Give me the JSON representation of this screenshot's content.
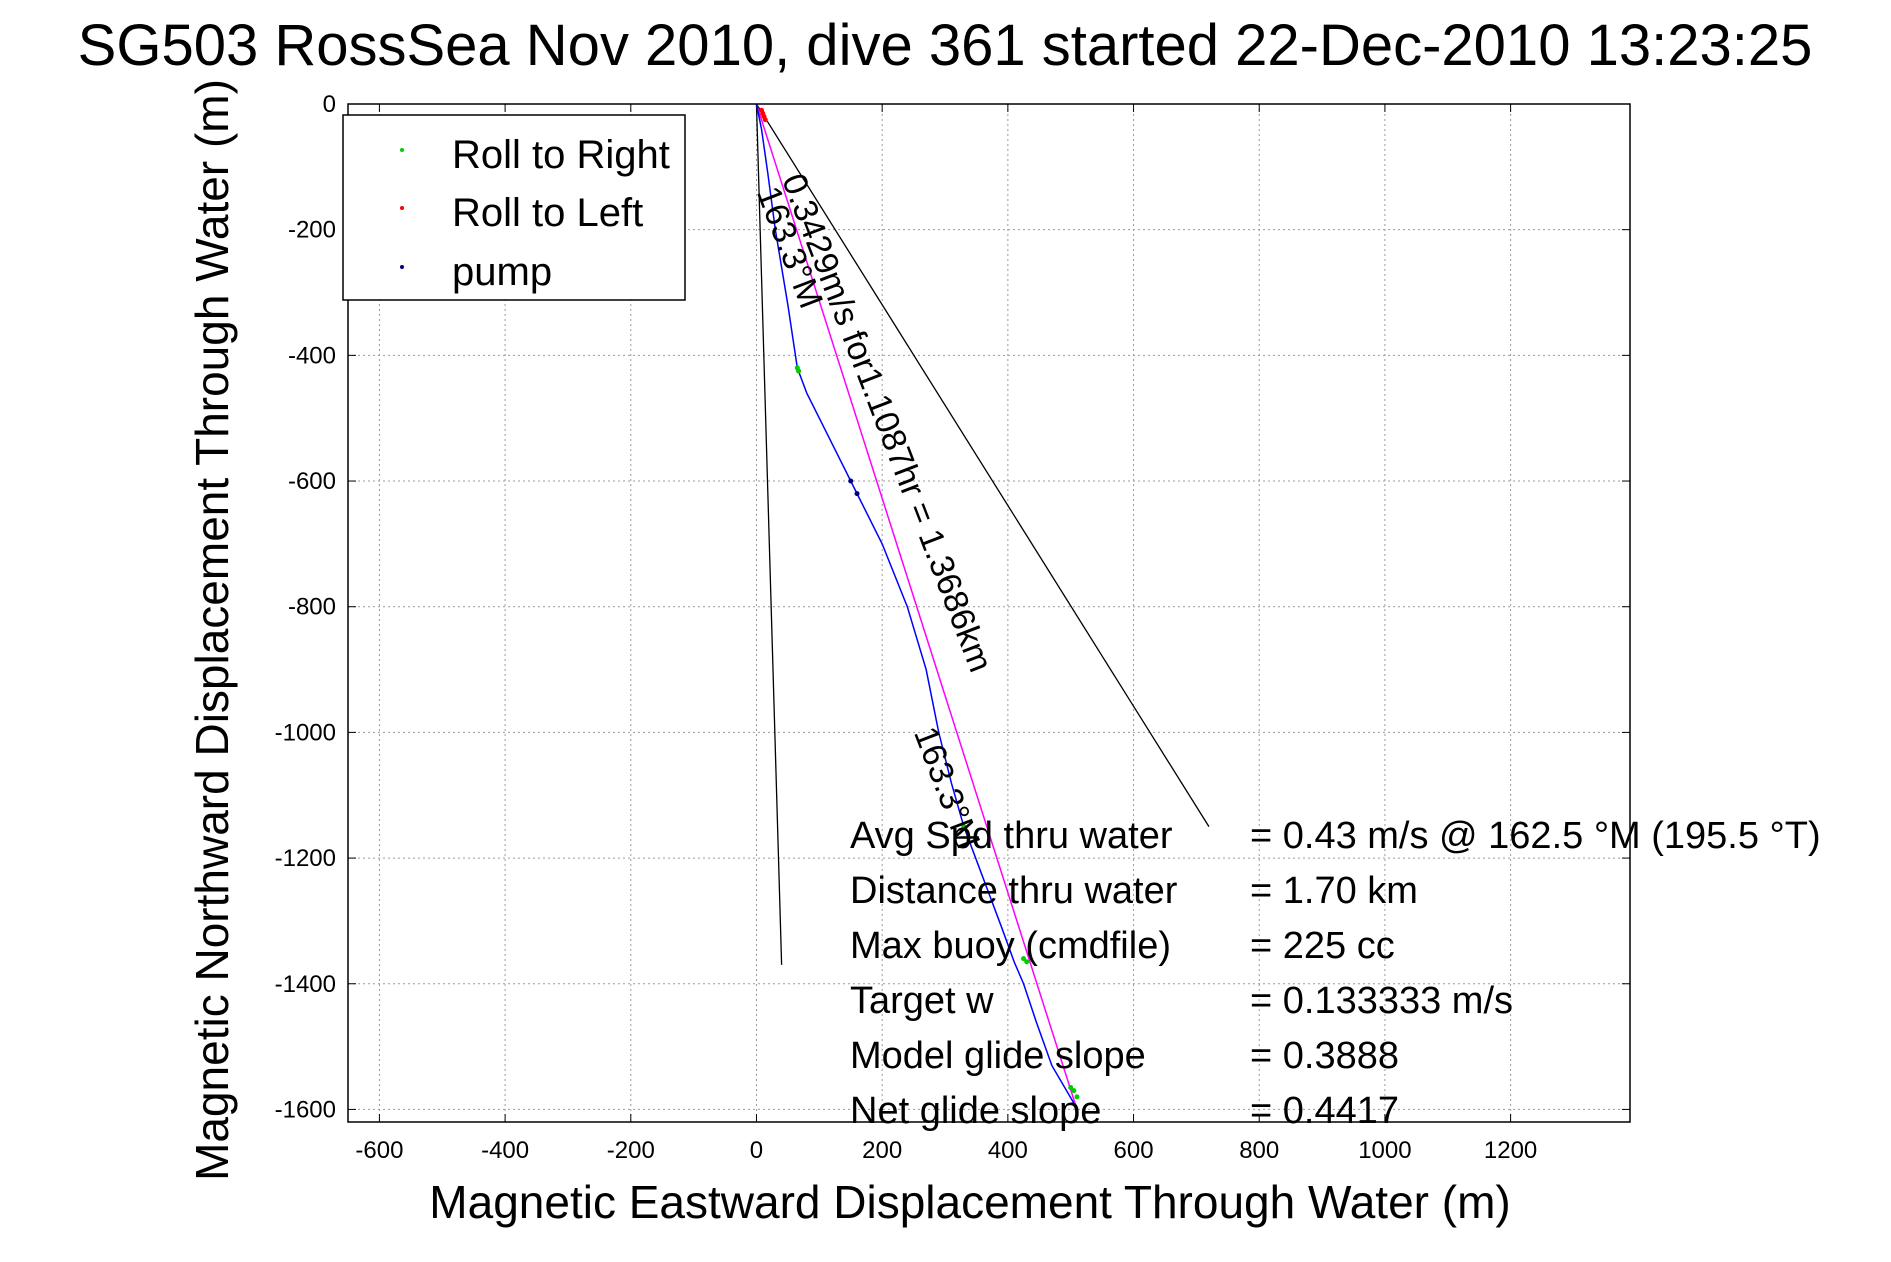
{
  "chart_data": {
    "type": "scatter",
    "title": "SG503 RossSea Nov 2010, dive 361 started 22-Dec-2010 13:23:25",
    "xlabel": "Magnetic Eastward Displacement Through Water (m)",
    "ylabel": "Magnetic Northward Displacement Through Water (m)",
    "xlim": [
      -650,
      1390
    ],
    "ylim": [
      -1620,
      0
    ],
    "xticks": [
      -600,
      -400,
      -200,
      0,
      200,
      400,
      600,
      800,
      1000,
      1200
    ],
    "yticks": [
      0,
      -200,
      -400,
      -600,
      -800,
      -1000,
      -1200,
      -1400,
      -1600
    ],
    "grid": true,
    "legend_position": "top-left",
    "legend": [
      {
        "label": "Roll to Right",
        "color": "#00cc00"
      },
      {
        "label": "Roll to Left",
        "color": "#ff0000"
      },
      {
        "label": "pump",
        "color": "#000080"
      }
    ],
    "track": {
      "color": "#0000ff",
      "x": [
        0,
        8,
        18,
        30,
        50,
        65,
        80,
        120,
        160,
        200,
        240,
        270,
        290,
        310,
        330,
        360,
        390,
        410,
        425,
        445,
        470,
        505
      ],
      "y": [
        0,
        -40,
        -110,
        -200,
        -320,
        -420,
        -460,
        -540,
        -620,
        -700,
        -800,
        -900,
        -1000,
        -1080,
        -1150,
        -1230,
        -1310,
        -1365,
        -1400,
        -1460,
        -1530,
        -1590
      ]
    },
    "desired_track": {
      "color": "#ff00ff",
      "x": [
        0,
        510
      ],
      "y": [
        0,
        -1600
      ]
    },
    "roll_right": {
      "x": [
        65,
        67,
        330,
        425,
        430,
        500,
        505,
        510
      ],
      "y": [
        -420,
        -425,
        -1150,
        -1360,
        -1365,
        -1565,
        -1570,
        -1580
      ]
    },
    "roll_left": {
      "x": [
        8,
        10,
        12,
        14
      ],
      "y": [
        -10,
        -15,
        -20,
        -25
      ]
    },
    "pump": {
      "x": [
        150,
        160
      ],
      "y": [
        -600,
        -620
      ]
    },
    "lines": [
      {
        "x": [
          0,
          40
        ],
        "y": [
          0,
          -1370
        ],
        "color": "#000000"
      },
      {
        "x": [
          0,
          720
        ],
        "y": [
          0,
          -1150
        ],
        "color": "#000000"
      }
    ],
    "annotations": [
      {
        "text": "0.3429m/s for1.1087hr = 1.3686km",
        "x": 40,
        "y": -120,
        "angle": 69
      },
      {
        "text": "163.3°M",
        "x": 0,
        "y": -140,
        "angle": 69
      },
      {
        "text": "163.3°M",
        "x": 250,
        "y": -1000,
        "angle": 69
      }
    ],
    "stats": [
      {
        "label": "Avg Spd thru water",
        "value": "=  0.43 m/s @ 162.5 °M (195.5 °T)"
      },
      {
        "label": "Distance thru water",
        "value": "=  1.70 km"
      },
      {
        "label": "Max buoy (cmdfile)",
        "value": "= 225 cc"
      },
      {
        "label": "Target w",
        "value": "= 0.133333 m/s"
      },
      {
        "label": "Model glide slope",
        "value": "= 0.3888"
      },
      {
        "label": "Net glide slope",
        "value": "= 0.4417"
      }
    ]
  }
}
